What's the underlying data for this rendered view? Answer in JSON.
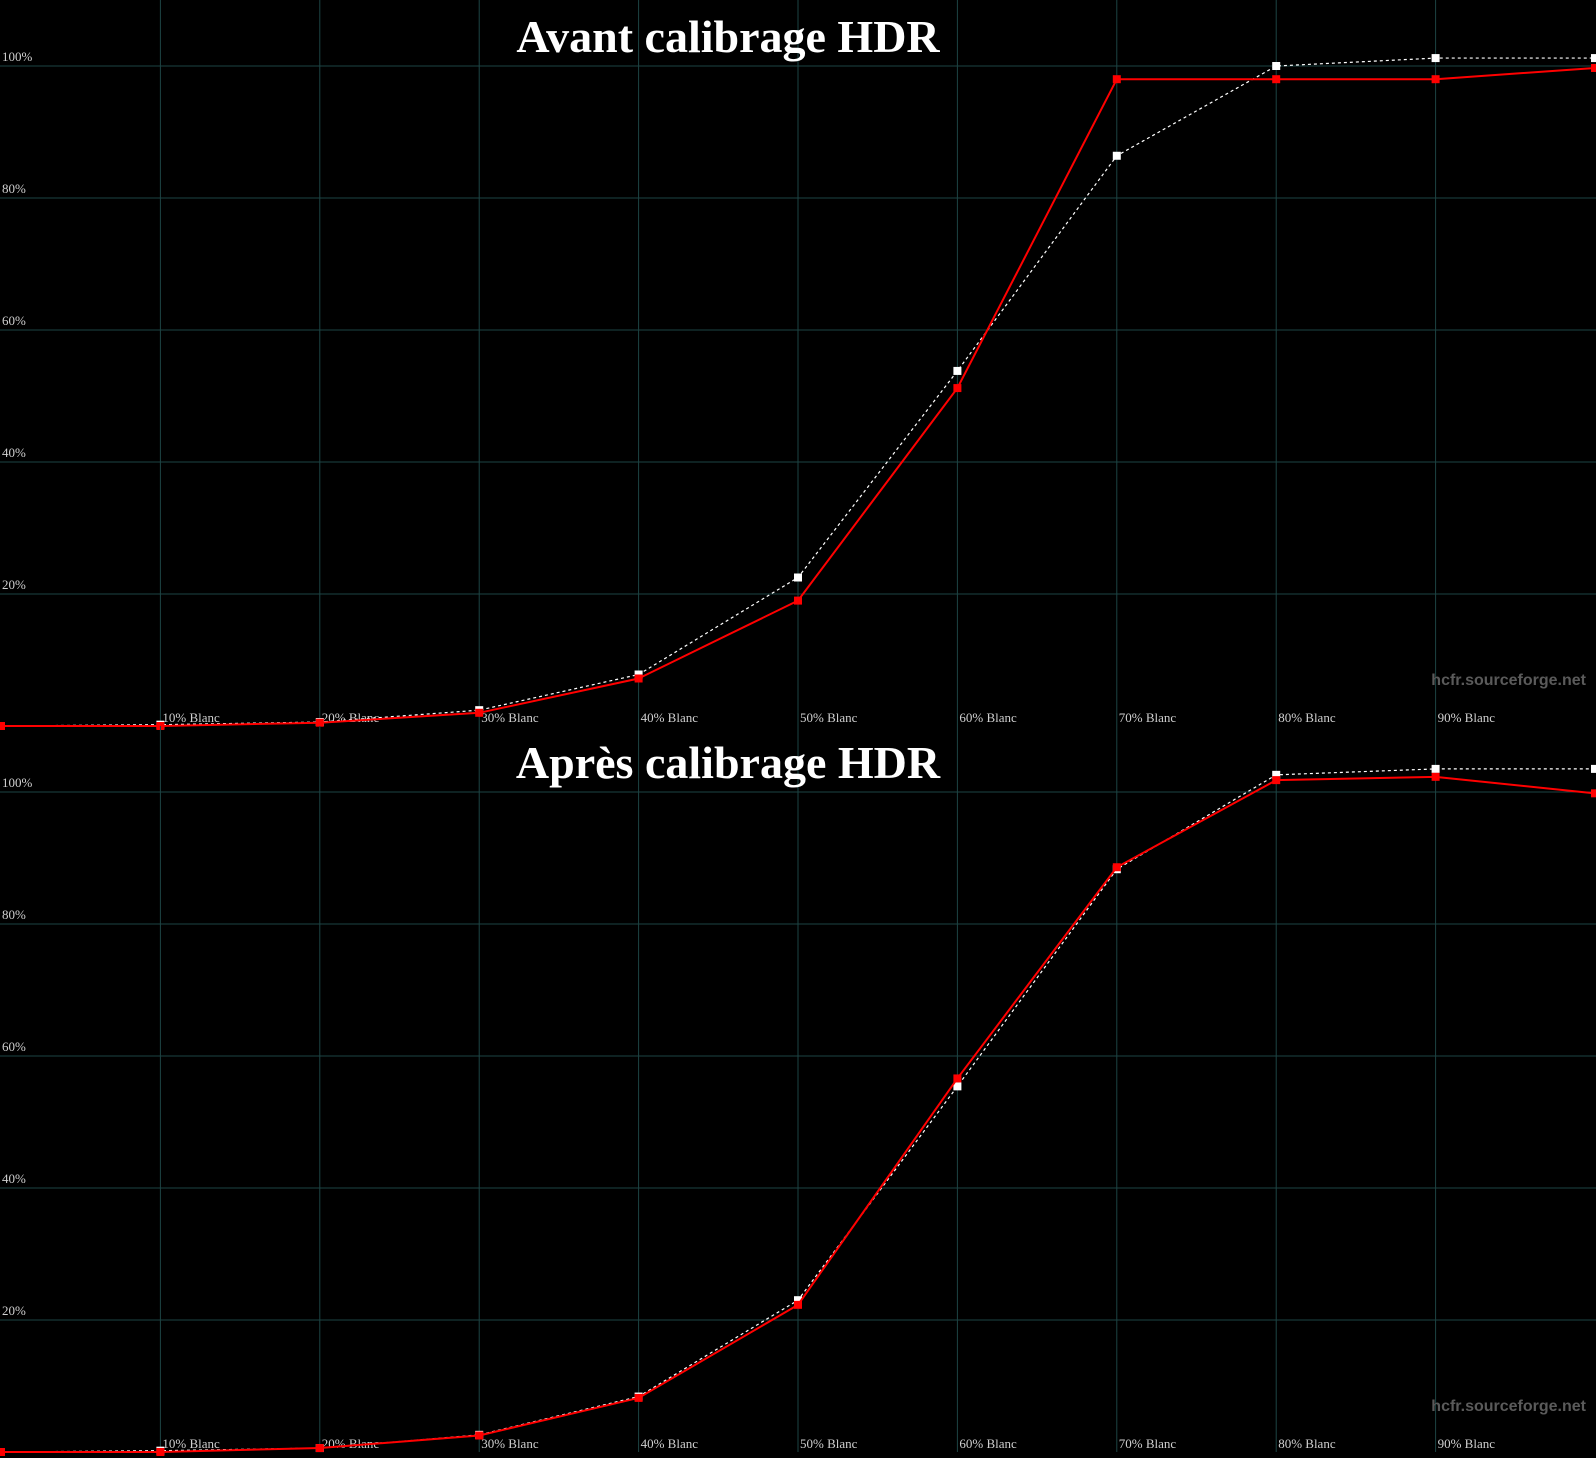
{
  "chart_data": [
    {
      "type": "line",
      "title": "Avant calibrage HDR",
      "watermark": "hcfr.sourceforge.net",
      "categories": [
        null,
        "10% Blanc",
        "20% Blanc",
        "30% Blanc",
        "40% Blanc",
        "50% Blanc",
        "60% Blanc",
        "70% Blanc",
        "80% Blanc",
        "90% Blanc",
        null
      ],
      "series": [
        {
          "color": "#ffffff",
          "style": "dashed",
          "values": [
            0,
            0.2,
            0.6,
            2.4,
            7.8,
            22.5,
            53.8,
            86.4,
            100,
            101.2,
            101.2
          ]
        },
        {
          "color": "#ff0000",
          "style": "solid",
          "values": [
            0,
            0,
            0.5,
            2,
            7.2,
            19,
            51.2,
            98,
            98,
            98,
            99.7
          ]
        }
      ],
      "ylim": [
        0,
        110
      ],
      "yticks": [
        {
          "value": 20,
          "label": "20%"
        },
        {
          "value": 40,
          "label": "40%"
        },
        {
          "value": 60,
          "label": "60%"
        },
        {
          "value": 80,
          "label": "80%"
        },
        {
          "value": 100,
          "label": "100%"
        }
      ],
      "grid": true
    },
    {
      "type": "line",
      "title": "Après calibrage HDR",
      "watermark": "hcfr.sourceforge.net",
      "categories": [
        null,
        "10% Blanc",
        "20% Blanc",
        "30% Blanc",
        "40% Blanc",
        "50% Blanc",
        "60% Blanc",
        "70% Blanc",
        "80% Blanc",
        "90% Blanc",
        null
      ],
      "series": [
        {
          "color": "#ffffff",
          "style": "dashed",
          "values": [
            0,
            0.2,
            0.6,
            2.6,
            8.4,
            23,
            55.4,
            88.3,
            102.6,
            103.5,
            103.5
          ]
        },
        {
          "color": "#ff0000",
          "style": "solid",
          "values": [
            0,
            0,
            0.6,
            2.5,
            8.2,
            22.3,
            56.6,
            88.6,
            101.8,
            102.3,
            99.8
          ]
        }
      ],
      "ylim": [
        0,
        110
      ],
      "yticks": [
        {
          "value": 20,
          "label": "20%"
        },
        {
          "value": 40,
          "label": "40%"
        },
        {
          "value": 60,
          "label": "60%"
        },
        {
          "value": 80,
          "label": "80%"
        },
        {
          "value": 100,
          "label": "100%"
        }
      ],
      "grid": true
    }
  ]
}
